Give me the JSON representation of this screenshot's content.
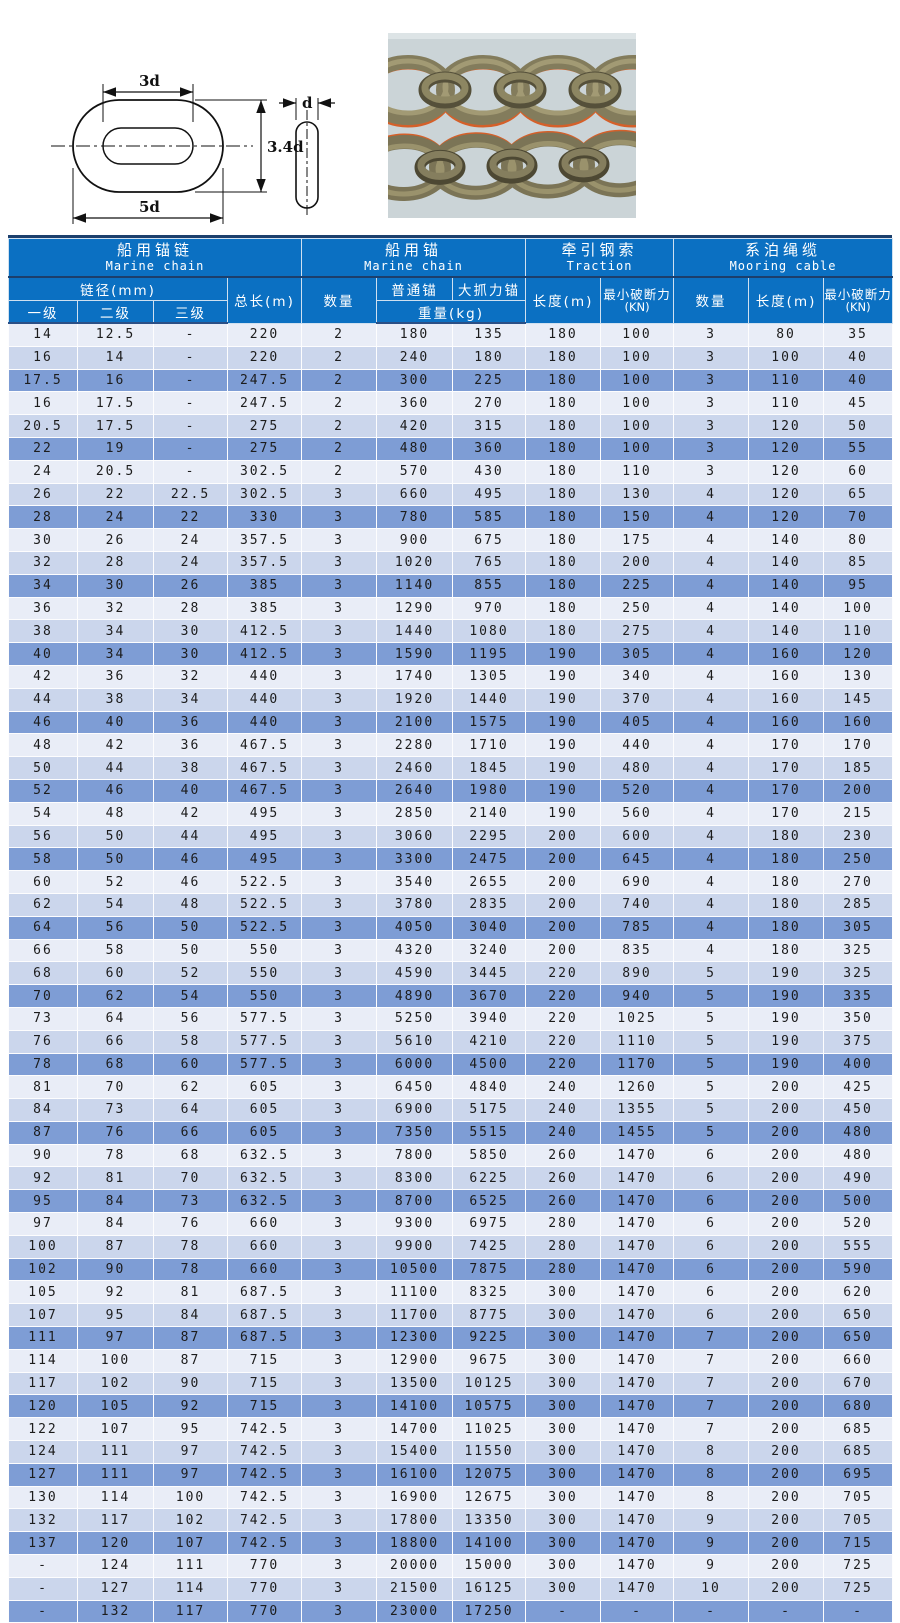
{
  "colors": {
    "header_blue": "#0b70c2",
    "top_bar": "#1c3f6c",
    "row_light": "#e9edf7",
    "row_mid": "#cbd6ec",
    "row_dark": "#7e9dd5",
    "photo_bg": "#cbd4d7",
    "photo_link_olive": "#837c5c",
    "photo_accent_orange": "#d4602a"
  },
  "diagram": {
    "dim_inner_width": "3d",
    "dim_outer_height": "3.4d",
    "dim_outer_width": "5d",
    "dim_bar_diameter": "d"
  },
  "table": {
    "groups": [
      {
        "zh": "船用锚链",
        "en": "Marine chain"
      },
      {
        "zh": "船用锚",
        "en": "Marine chain"
      },
      {
        "zh": "牵引钢索",
        "en": "Traction"
      },
      {
        "zh": "系泊绳缆",
        "en": "Mooring cable"
      }
    ],
    "sub": {
      "chain_diameter": "链径(mm)",
      "grade_1": "一级",
      "grade_2": "二级",
      "grade_3": "三级",
      "total_length": "总长(m)",
      "anchor_qty": "数量",
      "ordinary_anchor": "普通锚",
      "high_holding_anchor": "大抓力锚",
      "weight": "重量(kg)",
      "traction_length": "长度(m)",
      "traction_breaking": "最小破断力",
      "traction_breaking_unit": "(KN)",
      "mooring_qty": "数量",
      "mooring_length": "长度(m)",
      "mooring_breaking": "最小破断力",
      "mooring_breaking_unit": "(KN)"
    },
    "rows": [
      [
        "14",
        "12.5",
        "-",
        "220",
        "2",
        "180",
        "135",
        "180",
        "100",
        "3",
        "80",
        "35"
      ],
      [
        "16",
        "14",
        "-",
        "220",
        "2",
        "240",
        "180",
        "180",
        "100",
        "3",
        "100",
        "40"
      ],
      [
        "17.5",
        "16",
        "-",
        "247.5",
        "2",
        "300",
        "225",
        "180",
        "100",
        "3",
        "110",
        "40"
      ],
      [
        "16",
        "17.5",
        "-",
        "247.5",
        "2",
        "360",
        "270",
        "180",
        "100",
        "3",
        "110",
        "45"
      ],
      [
        "20.5",
        "17.5",
        "-",
        "275",
        "2",
        "420",
        "315",
        "180",
        "100",
        "3",
        "120",
        "50"
      ],
      [
        "22",
        "19",
        "-",
        "275",
        "2",
        "480",
        "360",
        "180",
        "100",
        "3",
        "120",
        "55"
      ],
      [
        "24",
        "20.5",
        "-",
        "302.5",
        "2",
        "570",
        "430",
        "180",
        "110",
        "3",
        "120",
        "60"
      ],
      [
        "26",
        "22",
        "22.5",
        "302.5",
        "3",
        "660",
        "495",
        "180",
        "130",
        "4",
        "120",
        "65"
      ],
      [
        "28",
        "24",
        "22",
        "330",
        "3",
        "780",
        "585",
        "180",
        "150",
        "4",
        "120",
        "70"
      ],
      [
        "30",
        "26",
        "24",
        "357.5",
        "3",
        "900",
        "675",
        "180",
        "175",
        "4",
        "140",
        "80"
      ],
      [
        "32",
        "28",
        "24",
        "357.5",
        "3",
        "1020",
        "765",
        "180",
        "200",
        "4",
        "140",
        "85"
      ],
      [
        "34",
        "30",
        "26",
        "385",
        "3",
        "1140",
        "855",
        "180",
        "225",
        "4",
        "140",
        "95"
      ],
      [
        "36",
        "32",
        "28",
        "385",
        "3",
        "1290",
        "970",
        "180",
        "250",
        "4",
        "140",
        "100"
      ],
      [
        "38",
        "34",
        "30",
        "412.5",
        "3",
        "1440",
        "1080",
        "180",
        "275",
        "4",
        "140",
        "110"
      ],
      [
        "40",
        "34",
        "30",
        "412.5",
        "3",
        "1590",
        "1195",
        "190",
        "305",
        "4",
        "160",
        "120"
      ],
      [
        "42",
        "36",
        "32",
        "440",
        "3",
        "1740",
        "1305",
        "190",
        "340",
        "4",
        "160",
        "130"
      ],
      [
        "44",
        "38",
        "34",
        "440",
        "3",
        "1920",
        "1440",
        "190",
        "370",
        "4",
        "160",
        "145"
      ],
      [
        "46",
        "40",
        "36",
        "440",
        "3",
        "2100",
        "1575",
        "190",
        "405",
        "4",
        "160",
        "160"
      ],
      [
        "48",
        "42",
        "36",
        "467.5",
        "3",
        "2280",
        "1710",
        "190",
        "440",
        "4",
        "170",
        "170"
      ],
      [
        "50",
        "44",
        "38",
        "467.5",
        "3",
        "2460",
        "1845",
        "190",
        "480",
        "4",
        "170",
        "185"
      ],
      [
        "52",
        "46",
        "40",
        "467.5",
        "3",
        "2640",
        "1980",
        "190",
        "520",
        "4",
        "170",
        "200"
      ],
      [
        "54",
        "48",
        "42",
        "495",
        "3",
        "2850",
        "2140",
        "190",
        "560",
        "4",
        "170",
        "215"
      ],
      [
        "56",
        "50",
        "44",
        "495",
        "3",
        "3060",
        "2295",
        "200",
        "600",
        "4",
        "180",
        "230"
      ],
      [
        "58",
        "50",
        "46",
        "495",
        "3",
        "3300",
        "2475",
        "200",
        "645",
        "4",
        "180",
        "250"
      ],
      [
        "60",
        "52",
        "46",
        "522.5",
        "3",
        "3540",
        "2655",
        "200",
        "690",
        "4",
        "180",
        "270"
      ],
      [
        "62",
        "54",
        "48",
        "522.5",
        "3",
        "3780",
        "2835",
        "200",
        "740",
        "4",
        "180",
        "285"
      ],
      [
        "64",
        "56",
        "50",
        "522.5",
        "3",
        "4050",
        "3040",
        "200",
        "785",
        "4",
        "180",
        "305"
      ],
      [
        "66",
        "58",
        "50",
        "550",
        "3",
        "4320",
        "3240",
        "200",
        "835",
        "4",
        "180",
        "325"
      ],
      [
        "68",
        "60",
        "52",
        "550",
        "3",
        "4590",
        "3445",
        "220",
        "890",
        "5",
        "190",
        "325"
      ],
      [
        "70",
        "62",
        "54",
        "550",
        "3",
        "4890",
        "3670",
        "220",
        "940",
        "5",
        "190",
        "335"
      ],
      [
        "73",
        "64",
        "56",
        "577.5",
        "3",
        "5250",
        "3940",
        "220",
        "1025",
        "5",
        "190",
        "350"
      ],
      [
        "76",
        "66",
        "58",
        "577.5",
        "3",
        "5610",
        "4210",
        "220",
        "1110",
        "5",
        "190",
        "375"
      ],
      [
        "78",
        "68",
        "60",
        "577.5",
        "3",
        "6000",
        "4500",
        "220",
        "1170",
        "5",
        "190",
        "400"
      ],
      [
        "81",
        "70",
        "62",
        "605",
        "3",
        "6450",
        "4840",
        "240",
        "1260",
        "5",
        "200",
        "425"
      ],
      [
        "84",
        "73",
        "64",
        "605",
        "3",
        "6900",
        "5175",
        "240",
        "1355",
        "5",
        "200",
        "450"
      ],
      [
        "87",
        "76",
        "66",
        "605",
        "3",
        "7350",
        "5515",
        "240",
        "1455",
        "5",
        "200",
        "480"
      ],
      [
        "90",
        "78",
        "68",
        "632.5",
        "3",
        "7800",
        "5850",
        "260",
        "1470",
        "6",
        "200",
        "480"
      ],
      [
        "92",
        "81",
        "70",
        "632.5",
        "3",
        "8300",
        "6225",
        "260",
        "1470",
        "6",
        "200",
        "490"
      ],
      [
        "95",
        "84",
        "73",
        "632.5",
        "3",
        "8700",
        "6525",
        "260",
        "1470",
        "6",
        "200",
        "500"
      ],
      [
        "97",
        "84",
        "76",
        "660",
        "3",
        "9300",
        "6975",
        "280",
        "1470",
        "6",
        "200",
        "520"
      ],
      [
        "100",
        "87",
        "78",
        "660",
        "3",
        "9900",
        "7425",
        "280",
        "1470",
        "6",
        "200",
        "555"
      ],
      [
        "102",
        "90",
        "78",
        "660",
        "3",
        "10500",
        "7875",
        "280",
        "1470",
        "6",
        "200",
        "590"
      ],
      [
        "105",
        "92",
        "81",
        "687.5",
        "3",
        "11100",
        "8325",
        "300",
        "1470",
        "6",
        "200",
        "620"
      ],
      [
        "107",
        "95",
        "84",
        "687.5",
        "3",
        "11700",
        "8775",
        "300",
        "1470",
        "6",
        "200",
        "650"
      ],
      [
        "111",
        "97",
        "87",
        "687.5",
        "3",
        "12300",
        "9225",
        "300",
        "1470",
        "7",
        "200",
        "650"
      ],
      [
        "114",
        "100",
        "87",
        "715",
        "3",
        "12900",
        "9675",
        "300",
        "1470",
        "7",
        "200",
        "660"
      ],
      [
        "117",
        "102",
        "90",
        "715",
        "3",
        "13500",
        "10125",
        "300",
        "1470",
        "7",
        "200",
        "670"
      ],
      [
        "120",
        "105",
        "92",
        "715",
        "3",
        "14100",
        "10575",
        "300",
        "1470",
        "7",
        "200",
        "680"
      ],
      [
        "122",
        "107",
        "95",
        "742.5",
        "3",
        "14700",
        "11025",
        "300",
        "1470",
        "7",
        "200",
        "685"
      ],
      [
        "124",
        "111",
        "97",
        "742.5",
        "3",
        "15400",
        "11550",
        "300",
        "1470",
        "8",
        "200",
        "685"
      ],
      [
        "127",
        "111",
        "97",
        "742.5",
        "3",
        "16100",
        "12075",
        "300",
        "1470",
        "8",
        "200",
        "695"
      ],
      [
        "130",
        "114",
        "100",
        "742.5",
        "3",
        "16900",
        "12675",
        "300",
        "1470",
        "8",
        "200",
        "705"
      ],
      [
        "132",
        "117",
        "102",
        "742.5",
        "3",
        "17800",
        "13350",
        "300",
        "1470",
        "9",
        "200",
        "705"
      ],
      [
        "137",
        "120",
        "107",
        "742.5",
        "3",
        "18800",
        "14100",
        "300",
        "1470",
        "9",
        "200",
        "715"
      ],
      [
        "-",
        "124",
        "111",
        "770",
        "3",
        "20000",
        "15000",
        "300",
        "1470",
        "9",
        "200",
        "725"
      ],
      [
        "-",
        "127",
        "114",
        "770",
        "3",
        "21500",
        "16125",
        "300",
        "1470",
        "10",
        "200",
        "725"
      ],
      [
        "-",
        "132",
        "117",
        "770",
        "3",
        "23000",
        "17250",
        "-",
        "-",
        "-",
        "-",
        "-"
      ]
    ]
  }
}
